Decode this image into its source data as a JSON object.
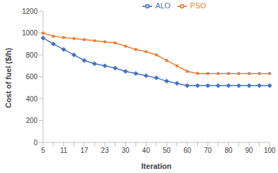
{
  "chart_data": {
    "type": "line",
    "x_label": "Iteration",
    "y_label": "Cost of fuel ($/h)",
    "categories": [
      "5",
      null,
      "11",
      null,
      "17",
      null,
      "23",
      null,
      "30",
      null,
      "40",
      null,
      "50",
      null,
      "60",
      null,
      "70",
      null,
      "80",
      null,
      "90",
      null,
      "100"
    ],
    "series": [
      {
        "name": "ALO",
        "color": "#4472c4",
        "marker": "diamond",
        "values": [
          955,
          900,
          850,
          800,
          750,
          720,
          700,
          680,
          650,
          630,
          610,
          590,
          560,
          540,
          520,
          520,
          520,
          520,
          520,
          520,
          520,
          520,
          520
        ]
      },
      {
        "name": "PSO",
        "color": "#ed7d31",
        "marker": "circle",
        "values": [
          1000,
          970,
          960,
          950,
          940,
          930,
          920,
          910,
          880,
          850,
          830,
          800,
          750,
          700,
          650,
          630,
          630,
          630,
          630,
          630,
          630,
          630,
          630
        ]
      }
    ],
    "ylim": [
      0,
      1200
    ],
    "yticks": [
      0,
      200,
      400,
      600,
      800,
      1000,
      1200
    ],
    "grid": false,
    "legend": "top"
  }
}
